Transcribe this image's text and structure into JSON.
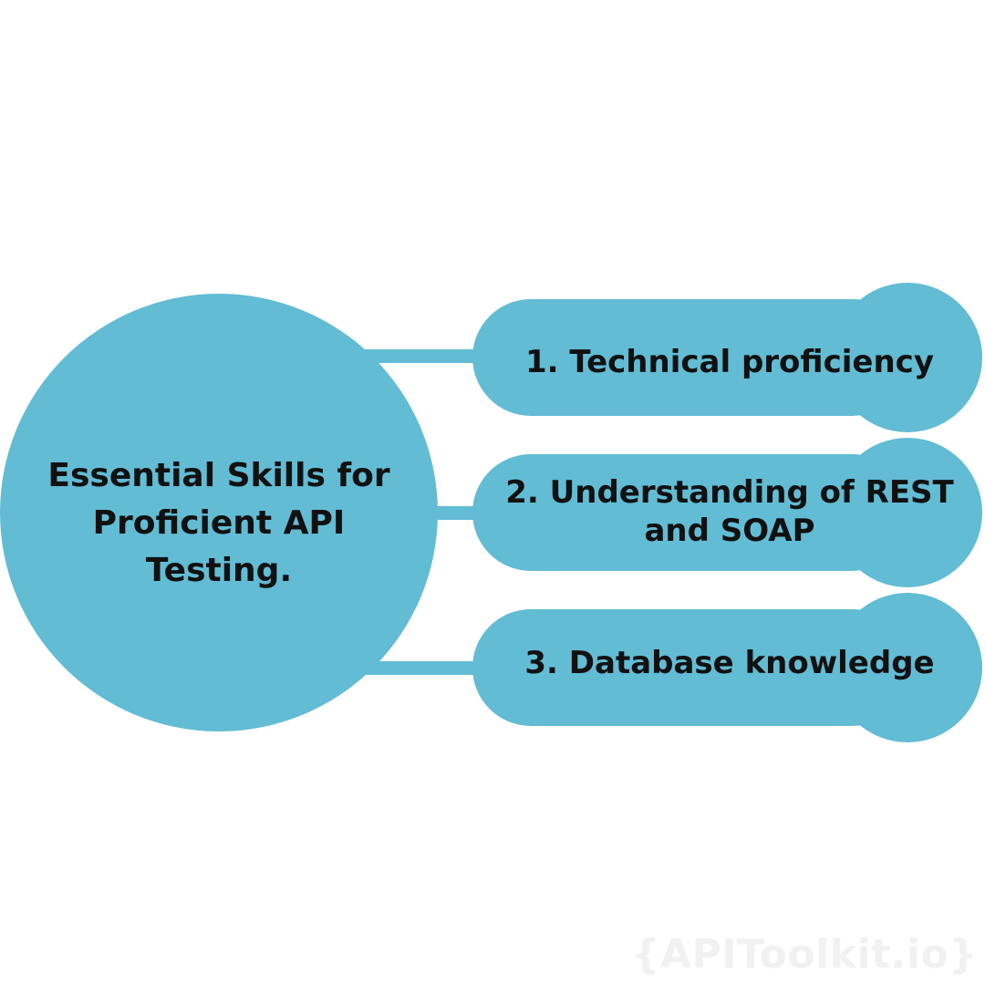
{
  "center": {
    "title": "Essential Skills for Proficient API Testing."
  },
  "items": [
    {
      "label": "1. Technical proficiency"
    },
    {
      "label": "2. Understanding of REST and SOAP"
    },
    {
      "label": "3. Database knowledge"
    }
  ],
  "watermark": "{APIToolkit.io}",
  "colors": {
    "shape_fill": "#62bcd4",
    "text": "#111111",
    "background": "#ffffff",
    "watermark": "#f1f1f1"
  }
}
